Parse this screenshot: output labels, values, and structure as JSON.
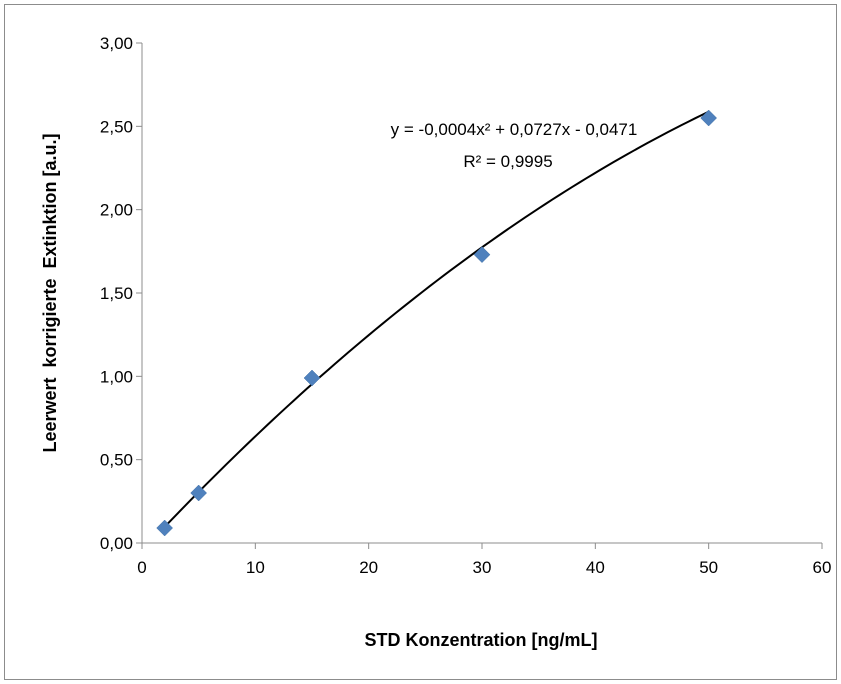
{
  "chart_data": {
    "type": "scatter",
    "title": "",
    "xlabel": "STD Konzentration [ng/mL]",
    "ylabel": "Leerwert  korrigierte  Extinktion [a.u.]",
    "xlim": [
      0,
      60
    ],
    "ylim": [
      0,
      3
    ],
    "x_ticks": [
      "0",
      "10",
      "20",
      "30",
      "40",
      "50",
      "60"
    ],
    "y_ticks": [
      "0,00",
      "0,50",
      "1,00",
      "1,50",
      "2,00",
      "2,50",
      "3,00"
    ],
    "grid": false,
    "legend": "none",
    "marker": "diamond",
    "marker_color": "#4f81bd",
    "series": [
      {
        "x": [
          2,
          5,
          15,
          30,
          50
        ],
        "y": [
          0.09,
          0.3,
          0.99,
          1.73,
          2.55
        ]
      }
    ],
    "trendline": {
      "type": "polynomial",
      "order": 2,
      "coefficients": [
        -0.0004,
        0.0727,
        -0.0471
      ],
      "x_range": [
        2,
        50
      ],
      "equation": "y = -0,0004x² + 0,0727x - 0,0471",
      "r_squared": "R² = 0,9995"
    }
  }
}
